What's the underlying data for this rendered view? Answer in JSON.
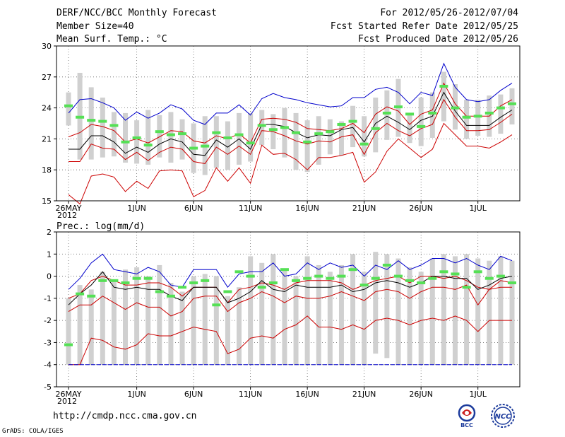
{
  "header": {
    "title": "DERF/NCC/BCC Monthly Forecast",
    "member_size": "Member Size=40",
    "variable": "Mean Surf. Temp.: °C",
    "period": "For 2012/05/26-2012/07/04",
    "started": "Fcst Started Refer Date 2012/05/25",
    "produced": "Fcst Produced Date 2012/05/26"
  },
  "footer": {
    "url": "http://cmdp.ncc.cma.gov.cn",
    "grads": "GrADS: COLA/IGES",
    "logo_bcc": "BCC",
    "logo_ncc": "NCC"
  },
  "colors": {
    "max_line": "#0000cc",
    "min_line": "#cc0000",
    "spread_line": "#cc0000",
    "mean_line": "#000000",
    "obs_bar": "#55e055",
    "box": "#d0d0d0"
  },
  "chart_data": [
    {
      "type": "line",
      "title": "Mean Surf. Temp.: °C",
      "ylim": [
        15,
        30
      ],
      "yticks": [
        15,
        18,
        21,
        24,
        27,
        30
      ],
      "xticks": [
        {
          "label": "26MAY",
          "index": 0,
          "sub": "2012"
        },
        {
          "label": "1JUN",
          "index": 6
        },
        {
          "label": "6JUN",
          "index": 11
        },
        {
          "label": "11JUN",
          "index": 16
        },
        {
          "label": "16JUN",
          "index": 21
        },
        {
          "label": "21JUN",
          "index": 26
        },
        {
          "label": "26JUN",
          "index": 31
        },
        {
          "label": "1JUL",
          "index": 36
        }
      ],
      "days": 40,
      "grid": true,
      "series": [
        {
          "name": "max",
          "values": [
            23.5,
            24.8,
            24.9,
            24.5,
            24.0,
            22.8,
            23.6,
            23.0,
            23.5,
            24.3,
            23.9,
            22.8,
            22.4,
            23.5,
            23.5,
            24.3,
            23.3,
            24.9,
            25.4,
            25.0,
            24.8,
            24.5,
            24.3,
            24.1,
            24.2,
            25.0,
            25.0,
            25.8,
            26.0,
            25.5,
            24.4,
            25.5,
            25.2,
            28.3,
            26.0,
            24.8,
            24.6,
            24.8,
            25.7,
            26.4
          ]
        },
        {
          "name": "upper",
          "values": [
            21.2,
            21.6,
            22.4,
            22.2,
            21.8,
            20.7,
            21.0,
            20.6,
            21.2,
            21.8,
            21.7,
            20.8,
            20.6,
            21.3,
            21.0,
            21.5,
            20.6,
            22.9,
            23.0,
            22.9,
            22.6,
            22.0,
            21.9,
            21.8,
            22.0,
            22.5,
            21.6,
            23.4,
            24.1,
            23.7,
            22.4,
            23.4,
            23.8,
            26.4,
            24.4,
            23.2,
            23.2,
            23.2,
            24.2,
            24.8
          ]
        },
        {
          "name": "mean",
          "values": [
            20.0,
            20.0,
            21.3,
            21.3,
            20.7,
            19.6,
            20.2,
            19.7,
            20.5,
            21.0,
            20.7,
            19.5,
            19.4,
            20.9,
            20.2,
            21.0,
            20.0,
            22.4,
            22.4,
            22.2,
            21.6,
            21.1,
            21.4,
            21.3,
            21.9,
            22.1,
            20.7,
            22.5,
            23.2,
            22.6,
            21.9,
            22.8,
            23.2,
            25.5,
            23.7,
            22.3,
            22.3,
            22.3,
            23.1,
            23.8
          ]
        },
        {
          "name": "lower",
          "values": [
            18.8,
            18.8,
            20.5,
            20.1,
            20.0,
            19.0,
            19.7,
            18.9,
            19.7,
            20.2,
            20.0,
            18.8,
            18.6,
            20.2,
            19.5,
            20.3,
            19.5,
            21.8,
            21.7,
            21.3,
            20.8,
            20.5,
            20.8,
            20.7,
            21.2,
            21.4,
            19.5,
            21.6,
            22.5,
            21.8,
            21.3,
            22.0,
            22.4,
            24.8,
            23.1,
            21.8,
            21.8,
            21.9,
            22.6,
            23.4
          ]
        },
        {
          "name": "min",
          "values": [
            15.6,
            14.7,
            17.4,
            17.6,
            17.3,
            15.9,
            16.9,
            16.2,
            17.9,
            18.0,
            17.9,
            15.4,
            16.0,
            18.2,
            16.9,
            18.2,
            16.7,
            20.4,
            19.5,
            19.6,
            19.0,
            18.0,
            19.2,
            19.2,
            19.4,
            19.7,
            16.8,
            17.8,
            19.8,
            21.0,
            20.1,
            19.2,
            20.0,
            22.5,
            21.4,
            20.3,
            20.3,
            20.1,
            20.7,
            21.4
          ]
        }
      ],
      "boxes": [
        [
          22.3,
          25.5
        ],
        [
          19.0,
          27.4
        ],
        [
          19.0,
          26.0
        ],
        [
          19.2,
          25.0
        ],
        [
          19.3,
          23.6
        ],
        [
          18.7,
          23.5
        ],
        [
          18.6,
          22.8
        ],
        [
          18.5,
          23.8
        ],
        [
          19.2,
          23.3
        ],
        [
          18.7,
          23.6
        ],
        [
          19.0,
          22.9
        ],
        [
          17.7,
          22.5
        ],
        [
          17.5,
          23.2
        ],
        [
          18.2,
          23.2
        ],
        [
          18.0,
          22.7
        ],
        [
          18.5,
          23.5
        ],
        [
          18.8,
          23.5
        ],
        [
          20.4,
          23.8
        ],
        [
          20.0,
          23.4
        ],
        [
          19.2,
          24.0
        ],
        [
          18.0,
          23.5
        ],
        [
          17.8,
          22.8
        ],
        [
          18.5,
          23.2
        ],
        [
          19.5,
          22.9
        ],
        [
          19.4,
          22.7
        ],
        [
          20.2,
          24.2
        ],
        [
          19.3,
          23.2
        ],
        [
          19.7,
          25.0
        ],
        [
          20.9,
          25.7
        ],
        [
          21.2,
          26.8
        ],
        [
          20.6,
          23.5
        ],
        [
          20.3,
          25.0
        ],
        [
          21.1,
          25.5
        ],
        [
          22.7,
          27.5
        ],
        [
          21.9,
          26.3
        ],
        [
          21.0,
          24.8
        ],
        [
          21.3,
          24.8
        ],
        [
          21.2,
          25.2
        ],
        [
          21.5,
          25.3
        ],
        [
          22.4,
          25.9
        ]
      ],
      "obs": [
        24.2,
        23.1,
        22.8,
        22.7,
        22.3,
        20.7,
        21.1,
        20.4,
        21.7,
        21.4,
        21.5,
        20.1,
        20.3,
        21.6,
        21.1,
        21.4,
        20.6,
        22.3,
        21.9,
        22.1,
        21.6,
        20.7,
        21.5,
        21.7,
        22.4,
        22.7,
        20.5,
        22.0,
        23.5,
        24.1,
        23.4,
        22.2,
        23.5,
        26.1,
        24.0,
        23.1,
        23.2,
        23.5,
        24.0,
        24.4
      ]
    },
    {
      "type": "line",
      "title": "Prec.: log(mm/d)",
      "ylim": [
        -5,
        2
      ],
      "yticks": [
        -5,
        -4,
        -3,
        -2,
        -1,
        0,
        1,
        2
      ],
      "xticks": [
        {
          "label": "26MAY",
          "index": 0,
          "sub": "2012"
        },
        {
          "label": "1JUN",
          "index": 6
        },
        {
          "label": "6JUN",
          "index": 11
        },
        {
          "label": "11JUN",
          "index": 16
        },
        {
          "label": "16JUN",
          "index": 21
        },
        {
          "label": "21JUN",
          "index": 26
        },
        {
          "label": "26JUN",
          "index": 31
        },
        {
          "label": "1JUL",
          "index": 36
        }
      ],
      "days": 40,
      "grid": true,
      "series": [
        {
          "name": "max",
          "values": [
            -0.6,
            -0.1,
            0.6,
            1.0,
            0.3,
            0.2,
            0.1,
            0.4,
            0.2,
            -0.4,
            -0.5,
            0.3,
            0.3,
            0.3,
            -0.5,
            0.1,
            0.2,
            0.2,
            0.6,
            0.0,
            0.1,
            0.6,
            0.3,
            0.6,
            0.4,
            0.5,
            0.0,
            0.5,
            0.3,
            0.7,
            0.3,
            0.5,
            0.8,
            0.8,
            0.6,
            0.8,
            0.5,
            0.3,
            0.9,
            0.7
          ]
        },
        {
          "name": "upper",
          "values": [
            -1.0,
            -0.8,
            -0.2,
            0.0,
            -0.2,
            -0.4,
            -0.4,
            -0.3,
            -0.3,
            -0.5,
            -0.9,
            -0.5,
            -0.5,
            -0.5,
            -1.2,
            -0.6,
            -0.5,
            -0.3,
            -0.4,
            -0.6,
            -0.3,
            -0.2,
            -0.2,
            -0.2,
            -0.3,
            -0.6,
            -0.4,
            -0.2,
            -0.1,
            0.0,
            -0.3,
            0.0,
            0.0,
            -0.1,
            0.0,
            -0.2,
            -0.5,
            -0.6,
            -0.2,
            -0.3
          ]
        },
        {
          "name": "mean",
          "values": [
            -1.3,
            -0.8,
            -0.4,
            0.2,
            -0.5,
            -0.6,
            -0.5,
            -0.6,
            -0.6,
            -0.9,
            -1.1,
            -0.5,
            -0.5,
            -0.5,
            -1.2,
            -1.0,
            -0.7,
            -0.2,
            -0.6,
            -0.7,
            -0.4,
            -0.5,
            -0.5,
            -0.5,
            -0.4,
            -0.7,
            -0.6,
            -0.3,
            -0.2,
            -0.3,
            -0.5,
            -0.3,
            0.0,
            0.0,
            -0.1,
            -0.1,
            -0.6,
            -0.4,
            -0.1,
            0.0
          ]
        },
        {
          "name": "lower",
          "values": [
            -1.6,
            -1.3,
            -1.3,
            -0.9,
            -1.2,
            -1.5,
            -1.2,
            -1.4,
            -1.4,
            -1.8,
            -1.6,
            -1.0,
            -0.9,
            -0.9,
            -1.6,
            -1.2,
            -1.0,
            -0.7,
            -0.9,
            -1.2,
            -0.9,
            -1.0,
            -1.0,
            -0.9,
            -0.7,
            -0.9,
            -1.1,
            -0.7,
            -0.6,
            -0.7,
            -1.0,
            -0.7,
            -0.5,
            -0.5,
            -0.6,
            -0.4,
            -1.3,
            -0.6,
            -0.5,
            -0.5
          ]
        },
        {
          "name": "min",
          "values": [
            -4.0,
            -4.0,
            -2.8,
            -2.9,
            -3.2,
            -3.3,
            -3.1,
            -2.6,
            -2.7,
            -2.7,
            -2.5,
            -2.3,
            -2.4,
            -2.5,
            -3.5,
            -3.3,
            -2.8,
            -2.7,
            -2.8,
            -2.4,
            -2.2,
            -1.8,
            -2.3,
            -2.3,
            -2.4,
            -2.2,
            -2.4,
            -2.0,
            -1.9,
            -2.0,
            -2.2,
            -2.0,
            -1.9,
            -2.0,
            -1.8,
            -2.0,
            -2.5,
            -2.0,
            -2.0,
            -2.0
          ]
        }
      ],
      "boxes": [
        [
          -4.0,
          -1.0
        ],
        [
          -4.0,
          -0.4
        ],
        [
          -4.0,
          -0.6
        ],
        [
          -4.0,
          0.2
        ],
        [
          -4.0,
          -0.2
        ],
        [
          -4.0,
          0.3
        ],
        [
          -4.0,
          0.4
        ],
        [
          -4.0,
          0.0
        ],
        [
          -4.0,
          0.5
        ],
        [
          -4.0,
          -0.3
        ],
        [
          -4.0,
          -0.7
        ],
        [
          -4.0,
          0.0
        ],
        [
          -4.0,
          0.1
        ],
        [
          -4.0,
          0.0
        ],
        [
          -4.0,
          -0.9
        ],
        [
          -4.0,
          -0.5
        ],
        [
          -4.0,
          0.9
        ],
        [
          -4.0,
          0.6
        ],
        [
          -4.0,
          1.0
        ],
        [
          -4.0,
          0.3
        ],
        [
          -4.0,
          0.0
        ],
        [
          -4.0,
          0.9
        ],
        [
          -4.0,
          0.5
        ],
        [
          -4.0,
          0.2
        ],
        [
          -4.0,
          0.5
        ],
        [
          -4.0,
          1.0
        ],
        [
          -4.0,
          0.2
        ],
        [
          -3.5,
          1.1
        ],
        [
          -3.7,
          1.0
        ],
        [
          -4.0,
          0.8
        ],
        [
          -4.0,
          0.4
        ],
        [
          -4.0,
          0.2
        ],
        [
          -4.0,
          0.8
        ],
        [
          -4.0,
          1.0
        ],
        [
          -4.0,
          0.9
        ],
        [
          -4.0,
          1.0
        ],
        [
          -4.0,
          0.8
        ],
        [
          -4.0,
          0.7
        ],
        [
          -4.0,
          0.9
        ],
        [
          -4.0,
          0.7
        ]
      ],
      "obs": [
        -3.1,
        -0.8,
        -0.9,
        -0.2,
        -0.2,
        -0.3,
        -0.1,
        -0.1,
        -0.7,
        -0.9,
        -0.5,
        -0.3,
        -0.2,
        -1.3,
        -0.7,
        0.2,
        0.0,
        -0.5,
        -0.3,
        0.3,
        -0.2,
        -0.1,
        0.0,
        -0.1,
        0.0,
        0.3,
        -0.4,
        -0.1,
        0.5,
        0.0,
        -0.2,
        -0.3,
        -0.1,
        0.2,
        0.1,
        -0.5,
        0.2,
        -0.1,
        0.0,
        -0.3
      ]
    }
  ]
}
